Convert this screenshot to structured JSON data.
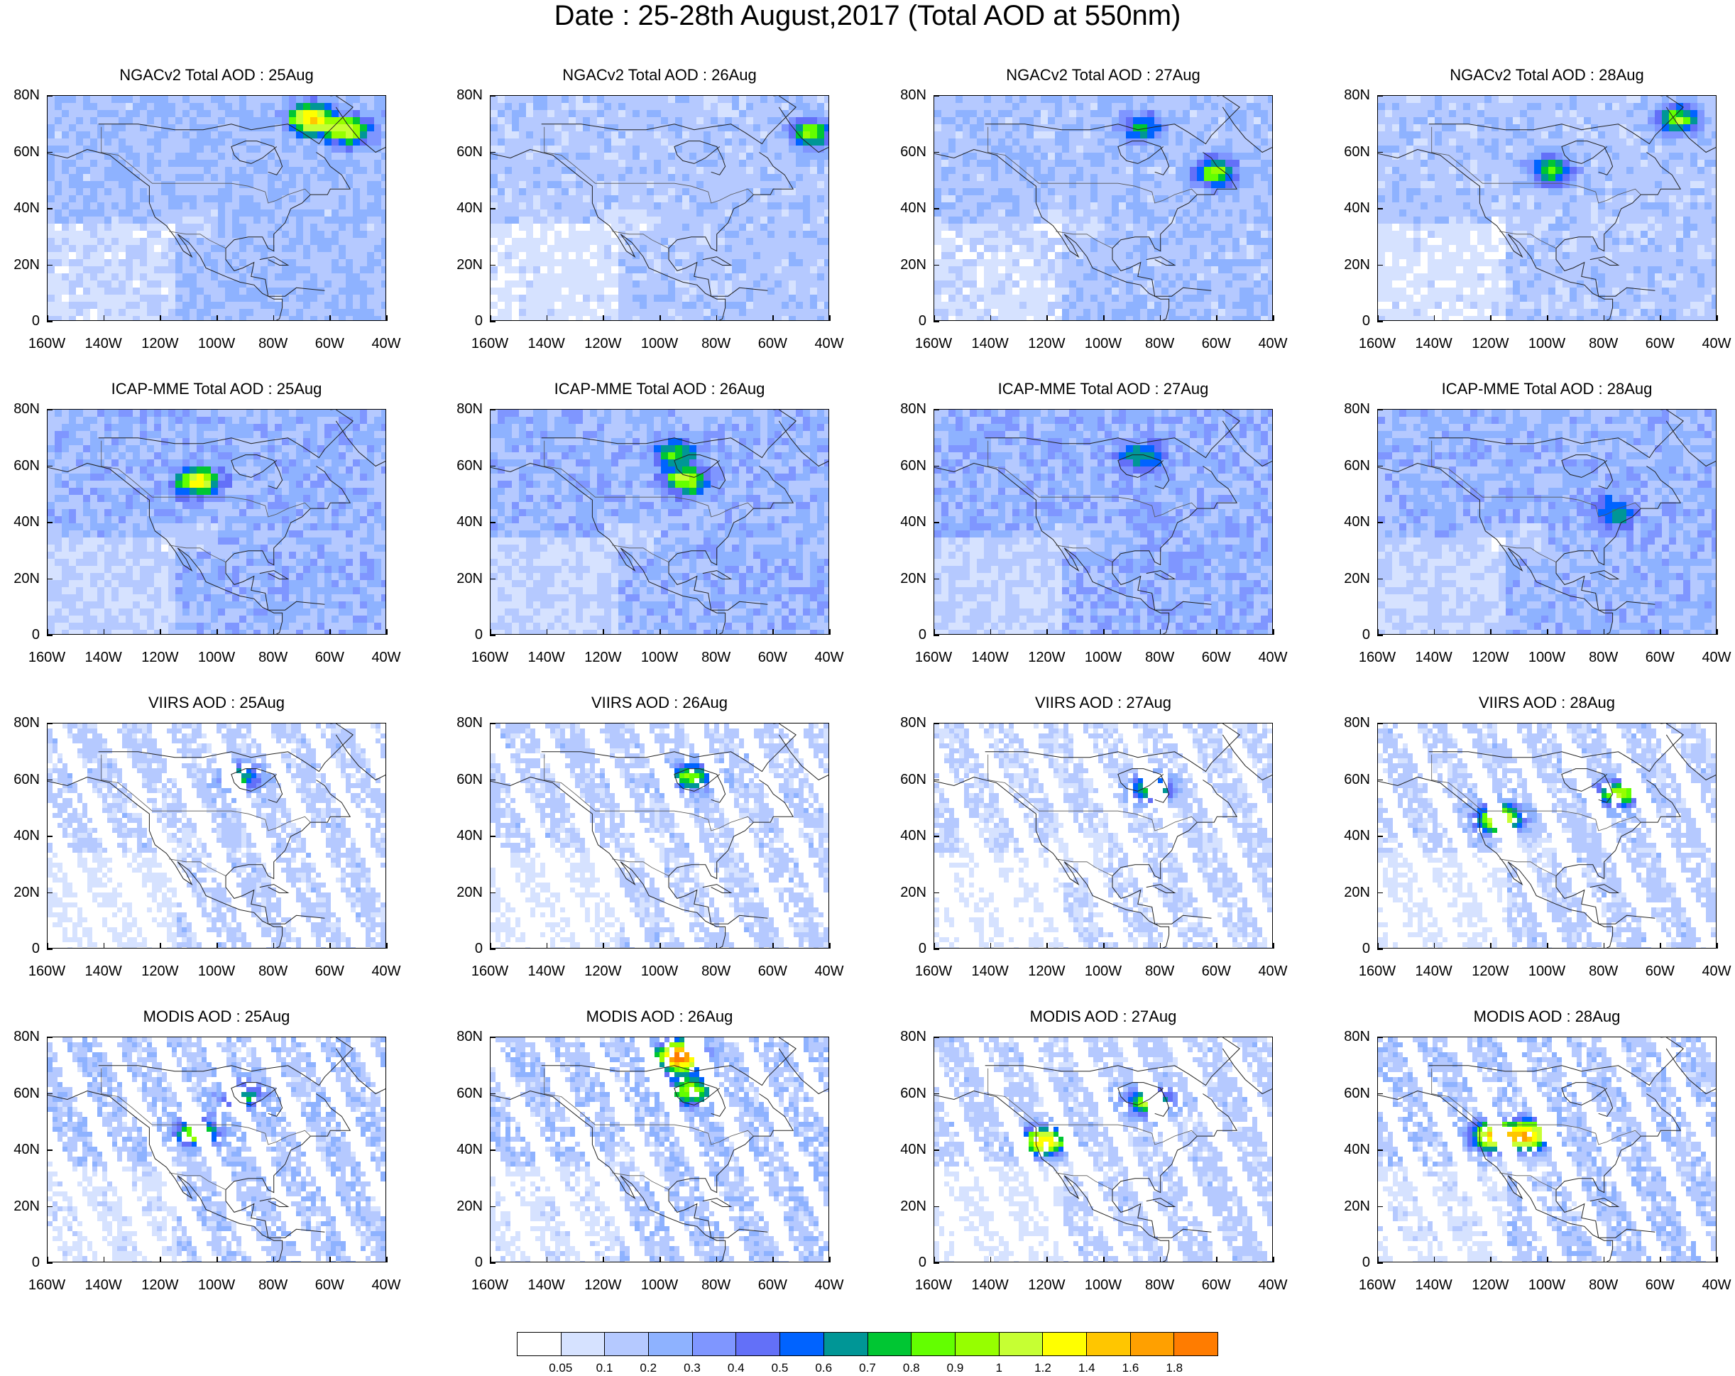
{
  "figure_title": "Date : 25-28th August,2017 (Total AOD at 550nm)",
  "axes": {
    "lat_ticks": [
      "80N",
      "60N",
      "40N",
      "20N",
      "0"
    ],
    "lon_ticks": [
      "160W",
      "140W",
      "120W",
      "100W",
      "80W",
      "60W",
      "40W"
    ],
    "lat_range": [
      0,
      80
    ],
    "lon_range": [
      -160,
      -40
    ]
  },
  "colorbar": {
    "labels": [
      "0.05",
      "0.1",
      "0.2",
      "0.3",
      "0.4",
      "0.5",
      "0.6",
      "0.7",
      "0.8",
      "0.9",
      "1",
      "1.2",
      "1.4",
      "1.6",
      "1.8"
    ],
    "colors": [
      "#ffffff",
      "#d6e2ff",
      "#b5c9ff",
      "#8eb2ff",
      "#7f96ff",
      "#6370f8",
      "#0063ff",
      "#009696",
      "#00c633",
      "#63ff00",
      "#96ff00",
      "#c6ff33",
      "#ffff00",
      "#ffc600",
      "#ffa000",
      "#ff7c00",
      "#ff1900"
    ]
  },
  "rows": [
    {
      "product": "NGACv2",
      "panels": [
        {
          "title": "NGACv2 Total AOD : 25Aug",
          "level": 0.22,
          "hotspots": [
            {
              "lon": -68,
              "lat": 73,
              "aod": 1.3
            },
            {
              "lon": -55,
              "lat": 69,
              "aod": 1.0
            }
          ]
        },
        {
          "title": "NGACv2 Total AOD : 26Aug",
          "level": 0.17,
          "hotspots": [
            {
              "lon": -48,
              "lat": 68,
              "aod": 0.8
            }
          ]
        },
        {
          "title": "NGACv2 Total AOD : 27Aug",
          "level": 0.2,
          "hotspots": [
            {
              "lon": -62,
              "lat": 54,
              "aod": 0.8
            },
            {
              "lon": -88,
              "lat": 70,
              "aod": 0.55
            }
          ]
        },
        {
          "title": "NGACv2 Total AOD : 28Aug",
          "level": 0.17,
          "hotspots": [
            {
              "lon": -55,
              "lat": 73,
              "aod": 0.8
            },
            {
              "lon": -100,
              "lat": 55,
              "aod": 0.75
            }
          ]
        }
      ]
    },
    {
      "product": "ICAP-MME",
      "panels": [
        {
          "title": "ICAP-MME Total AOD : 25Aug",
          "level": 0.25,
          "hotspots": [
            {
              "lon": -108,
              "lat": 56,
              "aod": 1.0
            }
          ]
        },
        {
          "title": "ICAP-MME Total AOD : 26Aug",
          "level": 0.25,
          "hotspots": [
            {
              "lon": -96,
              "lat": 65,
              "aod": 0.6
            },
            {
              "lon": -92,
              "lat": 56,
              "aod": 0.8
            }
          ]
        },
        {
          "title": "ICAP-MME Total AOD : 27Aug",
          "level": 0.27,
          "hotspots": [
            {
              "lon": -88,
              "lat": 65,
              "aod": 0.5
            }
          ]
        },
        {
          "title": "ICAP-MME Total AOD : 28Aug",
          "level": 0.25,
          "hotspots": [
            {
              "lon": -78,
              "lat": 45,
              "aod": 0.5
            }
          ]
        }
      ]
    },
    {
      "product": "VIIRS",
      "panels": [
        {
          "title": "VIIRS AOD : 25Aug",
          "level": 0.15,
          "hotspots": [
            {
              "lon": -92,
              "lat": 62,
              "aod": 0.55
            }
          ]
        },
        {
          "title": "VIIRS AOD : 26Aug",
          "level": 0.15,
          "hotspots": [
            {
              "lon": -90,
              "lat": 62,
              "aod": 0.8
            }
          ]
        },
        {
          "title": "VIIRS AOD : 27Aug",
          "level": 0.12,
          "hotspots": [
            {
              "lon": -84,
              "lat": 58,
              "aod": 0.8
            }
          ]
        },
        {
          "title": "VIIRS AOD : 28Aug",
          "level": 0.15,
          "hotspots": [
            {
              "lon": -118,
              "lat": 47,
              "aod": 1.3
            },
            {
              "lon": -76,
              "lat": 56,
              "aod": 0.9
            }
          ]
        }
      ]
    },
    {
      "product": "MODIS",
      "panels": [
        {
          "title": "MODIS AOD : 25Aug",
          "level": 0.18,
          "hotspots": [
            {
              "lon": -92,
              "lat": 60,
              "aod": 0.55
            },
            {
              "lon": -108,
              "lat": 47,
              "aod": 0.9
            }
          ]
        },
        {
          "title": "MODIS AOD : 26Aug",
          "level": 0.18,
          "hotspots": [
            {
              "lon": -90,
              "lat": 62,
              "aod": 0.9
            },
            {
              "lon": -94,
              "lat": 74,
              "aod": 1.8
            }
          ]
        },
        {
          "title": "MODIS AOD : 27Aug",
          "level": 0.15,
          "hotspots": [
            {
              "lon": -85,
              "lat": 58,
              "aod": 0.9
            },
            {
              "lon": -122,
              "lat": 44,
              "aod": 1.3
            }
          ]
        },
        {
          "title": "MODIS AOD : 28Aug",
          "level": 0.18,
          "hotspots": [
            {
              "lon": -120,
              "lat": 46,
              "aod": 1.3
            },
            {
              "lon": -108,
              "lat": 46,
              "aod": 1.4
            }
          ]
        }
      ]
    }
  ]
}
